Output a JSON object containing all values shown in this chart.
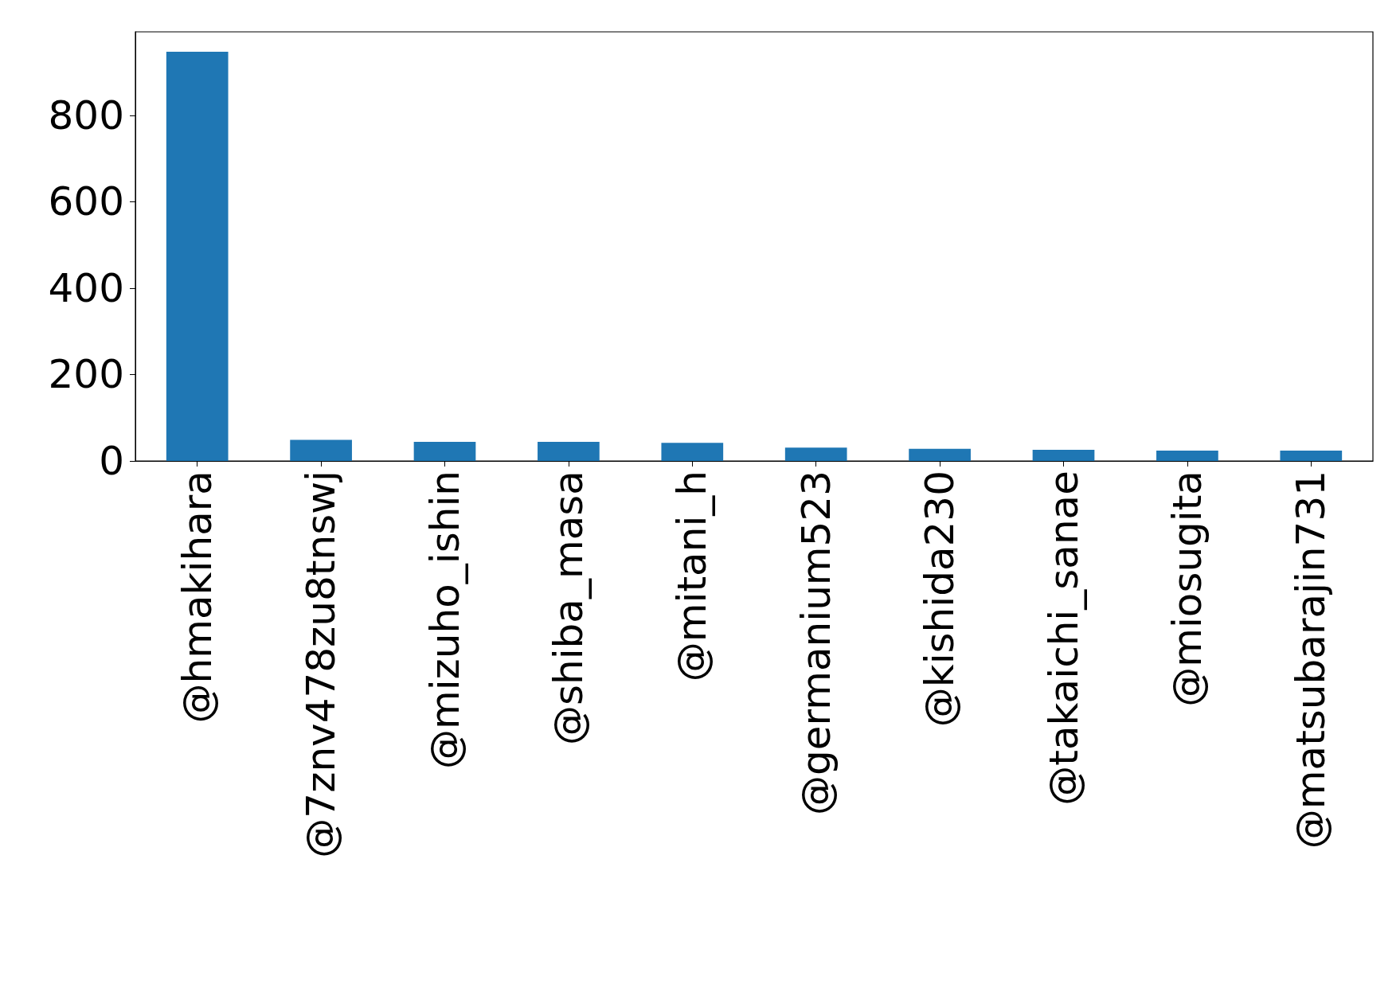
{
  "chart_data": {
    "type": "bar",
    "categories": [
      "@hmakihara",
      "@7znv478zu8tnswj",
      "@mizuho_ishin",
      "@shiba_masa",
      "@mitani_h",
      "@germanium523",
      "@kishida230",
      "@takaichi_sanae",
      "@miosugita",
      "@matsubarajin731"
    ],
    "values": [
      947,
      49,
      44,
      44,
      42,
      31,
      28,
      26,
      24,
      24
    ],
    "color": "#1f77b4",
    "ylim": [
      0,
      993
    ],
    "yticks": [
      0,
      200,
      400,
      600,
      800
    ],
    "grid": false
  }
}
